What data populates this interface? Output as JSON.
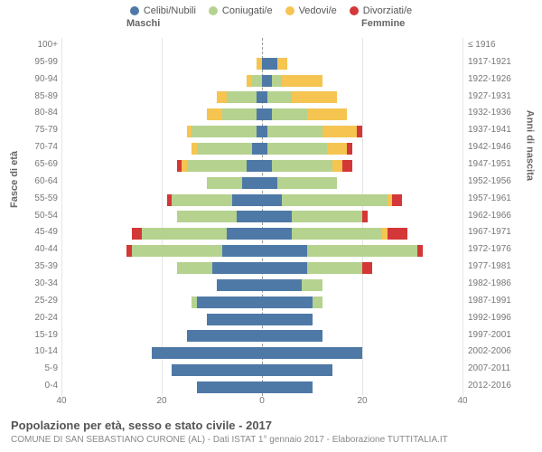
{
  "chart": {
    "type": "population-pyramid",
    "title": "Popolazione per età, sesso e stato civile - 2017",
    "subtitle": "COMUNE DI SAN SEBASTIANO CURONE (AL) - Dati ISTAT 1° gennaio 2017 - Elaborazione TUTTITALIA.IT",
    "legend": [
      {
        "label": "Celibi/Nubili",
        "color": "#4e79a7"
      },
      {
        "label": "Coniugati/e",
        "color": "#b5d28f"
      },
      {
        "label": "Vedovi/e",
        "color": "#f5c451"
      },
      {
        "label": "Divorziati/e",
        "color": "#d43737"
      }
    ],
    "header_male": "Maschi",
    "header_female": "Femmine",
    "axis_left_label": "Fasce di età",
    "axis_right_label": "Anni di nascita",
    "xlim": 40,
    "xticks": [
      40,
      20,
      0,
      20,
      40
    ],
    "background_color": "#ffffff",
    "grid_color": "#e5e5e5",
    "center_line_color": "#999999",
    "bar_height_ratio": 0.69,
    "age_groups": [
      "100+",
      "95-99",
      "90-94",
      "85-89",
      "80-84",
      "75-79",
      "70-74",
      "65-69",
      "60-64",
      "55-59",
      "50-54",
      "45-49",
      "40-44",
      "35-39",
      "30-34",
      "25-29",
      "20-24",
      "15-19",
      "10-14",
      "5-9",
      "0-4"
    ],
    "birth_years": [
      "≤ 1916",
      "1917-1921",
      "1922-1926",
      "1927-1931",
      "1932-1936",
      "1937-1941",
      "1942-1946",
      "1947-1951",
      "1952-1956",
      "1957-1961",
      "1962-1966",
      "1967-1971",
      "1972-1976",
      "1977-1981",
      "1982-1986",
      "1987-1991",
      "1992-1996",
      "1997-2001",
      "2002-2006",
      "2007-2011",
      "2012-2016"
    ],
    "male": [
      {
        "celibi": 0,
        "coniugati": 0,
        "vedovi": 0,
        "divorziati": 0
      },
      {
        "celibi": 0,
        "coniugati": 0,
        "vedovi": 1,
        "divorziati": 0
      },
      {
        "celibi": 0,
        "coniugati": 2,
        "vedovi": 1,
        "divorziati": 0
      },
      {
        "celibi": 1,
        "coniugati": 6,
        "vedovi": 2,
        "divorziati": 0
      },
      {
        "celibi": 1,
        "coniugati": 7,
        "vedovi": 3,
        "divorziati": 0
      },
      {
        "celibi": 1,
        "coniugati": 13,
        "vedovi": 1,
        "divorziati": 0
      },
      {
        "celibi": 2,
        "coniugati": 11,
        "vedovi": 1,
        "divorziati": 0
      },
      {
        "celibi": 3,
        "coniugati": 12,
        "vedovi": 1,
        "divorziati": 1
      },
      {
        "celibi": 4,
        "coniugati": 7,
        "vedovi": 0,
        "divorziati": 0
      },
      {
        "celibi": 6,
        "coniugati": 12,
        "vedovi": 0,
        "divorziati": 1
      },
      {
        "celibi": 5,
        "coniugati": 12,
        "vedovi": 0,
        "divorziati": 0
      },
      {
        "celibi": 7,
        "coniugati": 17,
        "vedovi": 0,
        "divorziati": 2
      },
      {
        "celibi": 8,
        "coniugati": 18,
        "vedovi": 0,
        "divorziati": 1
      },
      {
        "celibi": 10,
        "coniugati": 7,
        "vedovi": 0,
        "divorziati": 0
      },
      {
        "celibi": 9,
        "coniugati": 0,
        "vedovi": 0,
        "divorziati": 0
      },
      {
        "celibi": 13,
        "coniugati": 1,
        "vedovi": 0,
        "divorziati": 0
      },
      {
        "celibi": 11,
        "coniugati": 0,
        "vedovi": 0,
        "divorziati": 0
      },
      {
        "celibi": 15,
        "coniugati": 0,
        "vedovi": 0,
        "divorziati": 0
      },
      {
        "celibi": 22,
        "coniugati": 0,
        "vedovi": 0,
        "divorziati": 0
      },
      {
        "celibi": 18,
        "coniugati": 0,
        "vedovi": 0,
        "divorziati": 0
      },
      {
        "celibi": 13,
        "coniugati": 0,
        "vedovi": 0,
        "divorziati": 0
      }
    ],
    "female": [
      {
        "celibi": 0,
        "coniugati": 0,
        "vedovi": 0,
        "divorziati": 0
      },
      {
        "celibi": 3,
        "coniugati": 0,
        "vedovi": 2,
        "divorziati": 0
      },
      {
        "celibi": 2,
        "coniugati": 2,
        "vedovi": 8,
        "divorziati": 0
      },
      {
        "celibi": 1,
        "coniugati": 5,
        "vedovi": 9,
        "divorziati": 0
      },
      {
        "celibi": 2,
        "coniugati": 7,
        "vedovi": 8,
        "divorziati": 0
      },
      {
        "celibi": 1,
        "coniugati": 11,
        "vedovi": 7,
        "divorziati": 1
      },
      {
        "celibi": 1,
        "coniugati": 12,
        "vedovi": 4,
        "divorziati": 1
      },
      {
        "celibi": 2,
        "coniugati": 12,
        "vedovi": 2,
        "divorziati": 2
      },
      {
        "celibi": 3,
        "coniugati": 12,
        "vedovi": 0,
        "divorziati": 0
      },
      {
        "celibi": 4,
        "coniugati": 21,
        "vedovi": 1,
        "divorziati": 2
      },
      {
        "celibi": 6,
        "coniugati": 14,
        "vedovi": 0,
        "divorziati": 1
      },
      {
        "celibi": 6,
        "coniugati": 18,
        "vedovi": 1,
        "divorziati": 4
      },
      {
        "celibi": 9,
        "coniugati": 22,
        "vedovi": 0,
        "divorziati": 1
      },
      {
        "celibi": 9,
        "coniugati": 11,
        "vedovi": 0,
        "divorziati": 2
      },
      {
        "celibi": 8,
        "coniugati": 4,
        "vedovi": 0,
        "divorziati": 0
      },
      {
        "celibi": 10,
        "coniugati": 2,
        "vedovi": 0,
        "divorziati": 0
      },
      {
        "celibi": 10,
        "coniugati": 0,
        "vedovi": 0,
        "divorziati": 0
      },
      {
        "celibi": 12,
        "coniugati": 0,
        "vedovi": 0,
        "divorziati": 0
      },
      {
        "celibi": 20,
        "coniugati": 0,
        "vedovi": 0,
        "divorziati": 0
      },
      {
        "celibi": 14,
        "coniugati": 0,
        "vedovi": 0,
        "divorziati": 0
      },
      {
        "celibi": 10,
        "coniugati": 0,
        "vedovi": 0,
        "divorziati": 0
      }
    ]
  }
}
